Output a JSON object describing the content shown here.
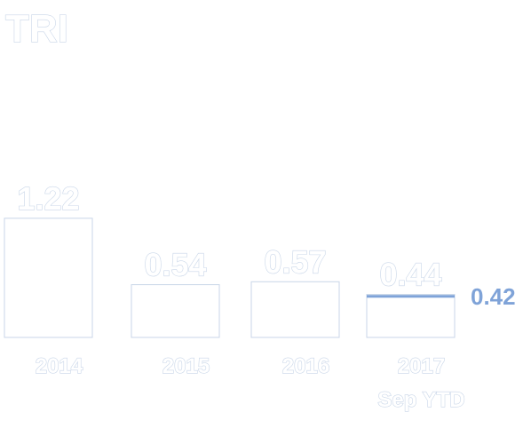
{
  "chart_data": {
    "type": "bar",
    "title": "TRI",
    "categories": [
      "2014",
      "2015",
      "2016",
      "2017"
    ],
    "category_sublabels": [
      "",
      "",
      "",
      "Sep YTD"
    ],
    "values": [
      1.22,
      0.54,
      0.57,
      0.44
    ],
    "value_labels": [
      "1.22",
      "0.54",
      "0.57",
      "0.44"
    ],
    "target": {
      "value": 0.42,
      "label": "0.42",
      "applies_to": "2017",
      "color": "#7fa3d8"
    },
    "bar_fill": "#ffffff",
    "bar_outline": "#c9d6e8",
    "text_color": "#ffffff",
    "xlabel": "",
    "ylabel": ""
  }
}
